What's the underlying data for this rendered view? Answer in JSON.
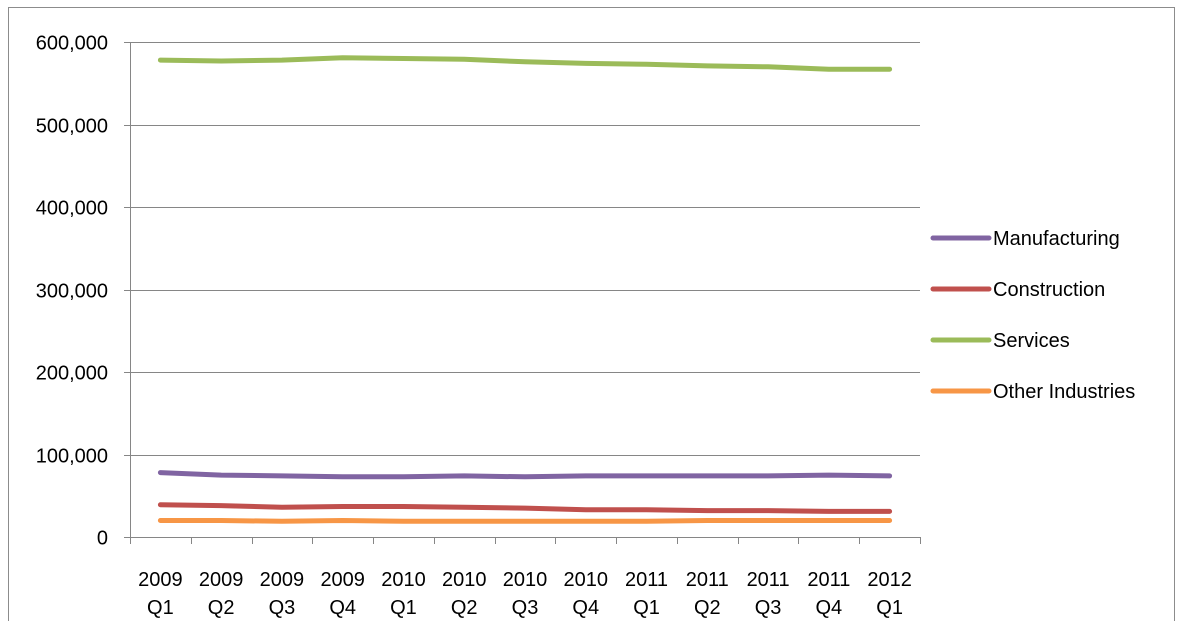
{
  "chart_data": {
    "type": "line",
    "title": "",
    "xlabel": "",
    "ylabel": "",
    "ylim": [
      0,
      600000
    ],
    "yticks": [
      "0",
      "100,000",
      "200,000",
      "300,000",
      "400,000",
      "500,000",
      "600,000"
    ],
    "yticks_values": [
      0,
      100000,
      200000,
      300000,
      400000,
      500000,
      600000
    ],
    "categories": [
      [
        "2009",
        "Q1"
      ],
      [
        "2009",
        "Q2"
      ],
      [
        "2009",
        "Q3"
      ],
      [
        "2009",
        "Q4"
      ],
      [
        "2010",
        "Q1"
      ],
      [
        "2010",
        "Q2"
      ],
      [
        "2010",
        "Q3"
      ],
      [
        "2010",
        "Q4"
      ],
      [
        "2011",
        "Q1"
      ],
      [
        "2011",
        "Q2"
      ],
      [
        "2011",
        "Q3"
      ],
      [
        "2011",
        "Q4"
      ],
      [
        "2012",
        "Q1"
      ]
    ],
    "grid": true,
    "legend_position": "right",
    "series": [
      {
        "name": "Manufacturing",
        "color": "#8064a2",
        "values": [
          78000,
          75000,
          74000,
          73000,
          73000,
          74000,
          73000,
          74000,
          74000,
          74000,
          74000,
          75000,
          74000
        ]
      },
      {
        "name": "Construction",
        "color": "#c0504d",
        "values": [
          39000,
          38000,
          36000,
          37000,
          37000,
          36000,
          35000,
          33000,
          33000,
          32000,
          32000,
          31000,
          31000
        ]
      },
      {
        "name": "Services",
        "color": "#9bbb59",
        "values": [
          578000,
          577000,
          578000,
          581000,
          580000,
          579000,
          576000,
          574000,
          573000,
          571000,
          570000,
          567000,
          567000
        ]
      },
      {
        "name": "Other Industries",
        "color": "#f79646",
        "values": [
          20000,
          20000,
          19000,
          20000,
          19000,
          19000,
          19000,
          19000,
          19000,
          20000,
          20000,
          20000,
          20000
        ]
      }
    ]
  }
}
